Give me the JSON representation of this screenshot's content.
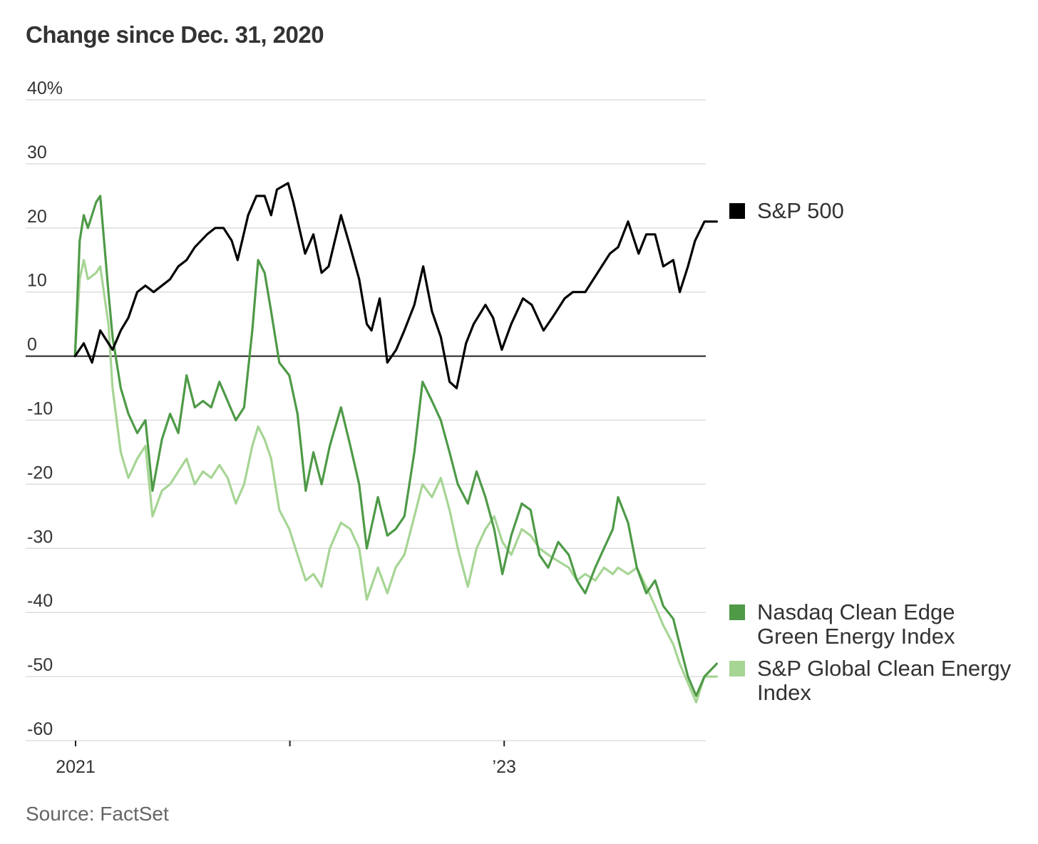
{
  "title": "Change since Dec. 31, 2020",
  "source": "Source: FactSet",
  "chart_data": {
    "type": "line",
    "ylabel": "",
    "xlabel": "",
    "ylim": [
      -60,
      40
    ],
    "y_ticks": [
      {
        "value": 40,
        "label": "40%"
      },
      {
        "value": 30,
        "label": "30"
      },
      {
        "value": 20,
        "label": "20"
      },
      {
        "value": 10,
        "label": "10"
      },
      {
        "value": 0,
        "label": "0"
      },
      {
        "value": -10,
        "label": "-10"
      },
      {
        "value": -20,
        "label": "-20"
      },
      {
        "value": -30,
        "label": "-30"
      },
      {
        "value": -40,
        "label": "-40"
      },
      {
        "value": -50,
        "label": "-50"
      },
      {
        "value": -60,
        "label": "-60"
      }
    ],
    "x_range": [
      "2021-01-01",
      "2023-12-31"
    ],
    "x_ticks": [
      {
        "date": "2021-01-01",
        "label": "2021"
      },
      {
        "date": "2022-01-01",
        "label": ""
      },
      {
        "date": "2023-01-01",
        "label": "’23"
      }
    ],
    "grid": true,
    "legend": "right",
    "series": [
      {
        "name": "S&P 500",
        "color": "#000000",
        "points": [
          [
            "2020-12-31",
            0
          ],
          [
            "2021-01-15",
            2
          ],
          [
            "2021-01-29",
            -1
          ],
          [
            "2021-02-12",
            4
          ],
          [
            "2021-03-05",
            1
          ],
          [
            "2021-03-19",
            4
          ],
          [
            "2021-04-01",
            6
          ],
          [
            "2021-04-16",
            10
          ],
          [
            "2021-04-30",
            11
          ],
          [
            "2021-05-14",
            10
          ],
          [
            "2021-05-28",
            11
          ],
          [
            "2021-06-11",
            12
          ],
          [
            "2021-06-25",
            14
          ],
          [
            "2021-07-09",
            15
          ],
          [
            "2021-07-23",
            17
          ],
          [
            "2021-08-13",
            19
          ],
          [
            "2021-08-27",
            20
          ],
          [
            "2021-09-10",
            20
          ],
          [
            "2021-09-24",
            18
          ],
          [
            "2021-10-04",
            15
          ],
          [
            "2021-10-22",
            22
          ],
          [
            "2021-11-05",
            25
          ],
          [
            "2021-11-19",
            25
          ],
          [
            "2021-11-30",
            22
          ],
          [
            "2021-12-10",
            26
          ],
          [
            "2021-12-29",
            27
          ],
          [
            "2022-01-07",
            24
          ],
          [
            "2022-01-27",
            16
          ],
          [
            "2022-02-10",
            19
          ],
          [
            "2022-02-24",
            13
          ],
          [
            "2022-03-08",
            14
          ],
          [
            "2022-03-29",
            22
          ],
          [
            "2022-04-14",
            17
          ],
          [
            "2022-04-29",
            12
          ],
          [
            "2022-05-12",
            5
          ],
          [
            "2022-05-20",
            4
          ],
          [
            "2022-06-03",
            9
          ],
          [
            "2022-06-16",
            -1
          ],
          [
            "2022-07-01",
            1
          ],
          [
            "2022-07-15",
            4
          ],
          [
            "2022-08-01",
            8
          ],
          [
            "2022-08-16",
            14
          ],
          [
            "2022-08-31",
            7
          ],
          [
            "2022-09-15",
            3
          ],
          [
            "2022-09-30",
            -4
          ],
          [
            "2022-10-12",
            -5
          ],
          [
            "2022-10-28",
            2
          ],
          [
            "2022-11-10",
            5
          ],
          [
            "2022-11-30",
            8
          ],
          [
            "2022-12-13",
            6
          ],
          [
            "2022-12-28",
            1
          ],
          [
            "2023-01-13",
            5
          ],
          [
            "2023-02-02",
            9
          ],
          [
            "2023-02-17",
            8
          ],
          [
            "2023-03-09",
            4
          ],
          [
            "2023-03-24",
            6
          ],
          [
            "2023-04-14",
            9
          ],
          [
            "2023-04-28",
            10
          ],
          [
            "2023-05-19",
            10
          ],
          [
            "2023-06-09",
            13
          ],
          [
            "2023-06-30",
            16
          ],
          [
            "2023-07-14",
            17
          ],
          [
            "2023-07-31",
            21
          ],
          [
            "2023-08-18",
            16
          ],
          [
            "2023-08-31",
            19
          ],
          [
            "2023-09-15",
            19
          ],
          [
            "2023-09-29",
            14
          ],
          [
            "2023-10-16",
            15
          ],
          [
            "2023-10-27",
            10
          ],
          [
            "2023-11-10",
            14
          ],
          [
            "2023-11-22",
            18
          ],
          [
            "2023-12-08",
            21
          ],
          [
            "2023-12-29",
            21
          ]
        ]
      },
      {
        "name": "Nasdaq Clean Edge Green Energy Index",
        "color": "#4e9a47",
        "points": [
          [
            "2020-12-31",
            0
          ],
          [
            "2021-01-08",
            18
          ],
          [
            "2021-01-15",
            22
          ],
          [
            "2021-01-22",
            20
          ],
          [
            "2021-02-05",
            24
          ],
          [
            "2021-02-12",
            25
          ],
          [
            "2021-02-26",
            10
          ],
          [
            "2021-03-05",
            3
          ],
          [
            "2021-03-19",
            -5
          ],
          [
            "2021-04-01",
            -9
          ],
          [
            "2021-04-16",
            -12
          ],
          [
            "2021-04-30",
            -10
          ],
          [
            "2021-05-12",
            -21
          ],
          [
            "2021-05-28",
            -13
          ],
          [
            "2021-06-11",
            -9
          ],
          [
            "2021-06-25",
            -12
          ],
          [
            "2021-07-09",
            -3
          ],
          [
            "2021-07-23",
            -8
          ],
          [
            "2021-08-06",
            -7
          ],
          [
            "2021-08-20",
            -8
          ],
          [
            "2021-09-03",
            -4
          ],
          [
            "2021-09-17",
            -7
          ],
          [
            "2021-10-01",
            -10
          ],
          [
            "2021-10-15",
            -8
          ],
          [
            "2021-10-29",
            4
          ],
          [
            "2021-11-08",
            15
          ],
          [
            "2021-11-19",
            13
          ],
          [
            "2021-11-30",
            7
          ],
          [
            "2021-12-14",
            -1
          ],
          [
            "2021-12-31",
            -3
          ],
          [
            "2022-01-14",
            -9
          ],
          [
            "2022-01-28",
            -21
          ],
          [
            "2022-02-10",
            -15
          ],
          [
            "2022-02-24",
            -20
          ],
          [
            "2022-03-10",
            -14
          ],
          [
            "2022-03-29",
            -8
          ],
          [
            "2022-04-14",
            -14
          ],
          [
            "2022-04-29",
            -20
          ],
          [
            "2022-05-12",
            -30
          ],
          [
            "2022-05-31",
            -22
          ],
          [
            "2022-06-16",
            -28
          ],
          [
            "2022-06-30",
            -27
          ],
          [
            "2022-07-15",
            -25
          ],
          [
            "2022-08-01",
            -15
          ],
          [
            "2022-08-15",
            -4
          ],
          [
            "2022-08-31",
            -7
          ],
          [
            "2022-09-15",
            -10
          ],
          [
            "2022-09-30",
            -15
          ],
          [
            "2022-10-14",
            -20
          ],
          [
            "2022-10-31",
            -23
          ],
          [
            "2022-11-15",
            -18
          ],
          [
            "2022-11-30",
            -22
          ],
          [
            "2022-12-15",
            -27
          ],
          [
            "2022-12-29",
            -34
          ],
          [
            "2023-01-13",
            -28
          ],
          [
            "2023-01-31",
            -23
          ],
          [
            "2023-02-15",
            -24
          ],
          [
            "2023-03-02",
            -31
          ],
          [
            "2023-03-17",
            -33
          ],
          [
            "2023-04-03",
            -29
          ],
          [
            "2023-04-21",
            -31
          ],
          [
            "2023-05-05",
            -35
          ],
          [
            "2023-05-19",
            -37
          ],
          [
            "2023-06-05",
            -33
          ],
          [
            "2023-06-20",
            -30
          ],
          [
            "2023-07-05",
            -27
          ],
          [
            "2023-07-14",
            -22
          ],
          [
            "2023-07-31",
            -26
          ],
          [
            "2023-08-15",
            -33
          ],
          [
            "2023-08-31",
            -37
          ],
          [
            "2023-09-15",
            -35
          ],
          [
            "2023-09-29",
            -39
          ],
          [
            "2023-10-16",
            -41
          ],
          [
            "2023-10-27",
            -45
          ],
          [
            "2023-11-10",
            -50
          ],
          [
            "2023-11-24",
            -53
          ],
          [
            "2023-12-08",
            -50
          ],
          [
            "2023-12-29",
            -48
          ]
        ]
      },
      {
        "name": "S&P Global Clean Energy Index",
        "color": "#a6d594",
        "points": [
          [
            "2020-12-31",
            0
          ],
          [
            "2021-01-08",
            12
          ],
          [
            "2021-01-15",
            15
          ],
          [
            "2021-01-22",
            12
          ],
          [
            "2021-02-05",
            13
          ],
          [
            "2021-02-12",
            14
          ],
          [
            "2021-02-26",
            5
          ],
          [
            "2021-03-05",
            -5
          ],
          [
            "2021-03-19",
            -15
          ],
          [
            "2021-04-01",
            -19
          ],
          [
            "2021-04-16",
            -16
          ],
          [
            "2021-04-30",
            -14
          ],
          [
            "2021-05-12",
            -25
          ],
          [
            "2021-05-28",
            -21
          ],
          [
            "2021-06-11",
            -20
          ],
          [
            "2021-06-25",
            -18
          ],
          [
            "2021-07-09",
            -16
          ],
          [
            "2021-07-23",
            -20
          ],
          [
            "2021-08-06",
            -18
          ],
          [
            "2021-08-20",
            -19
          ],
          [
            "2021-09-03",
            -17
          ],
          [
            "2021-09-17",
            -19
          ],
          [
            "2021-10-01",
            -23
          ],
          [
            "2021-10-15",
            -20
          ],
          [
            "2021-10-29",
            -14
          ],
          [
            "2021-11-08",
            -11
          ],
          [
            "2021-11-19",
            -13
          ],
          [
            "2021-11-30",
            -16
          ],
          [
            "2021-12-14",
            -24
          ],
          [
            "2021-12-31",
            -27
          ],
          [
            "2022-01-14",
            -31
          ],
          [
            "2022-01-28",
            -35
          ],
          [
            "2022-02-10",
            -34
          ],
          [
            "2022-02-24",
            -36
          ],
          [
            "2022-03-10",
            -30
          ],
          [
            "2022-03-29",
            -26
          ],
          [
            "2022-04-14",
            -27
          ],
          [
            "2022-04-29",
            -30
          ],
          [
            "2022-05-12",
            -38
          ],
          [
            "2022-05-31",
            -33
          ],
          [
            "2022-06-16",
            -37
          ],
          [
            "2022-06-30",
            -33
          ],
          [
            "2022-07-15",
            -31
          ],
          [
            "2022-08-01",
            -25
          ],
          [
            "2022-08-15",
            -20
          ],
          [
            "2022-08-31",
            -22
          ],
          [
            "2022-09-15",
            -19
          ],
          [
            "2022-09-30",
            -24
          ],
          [
            "2022-10-14",
            -30
          ],
          [
            "2022-10-31",
            -36
          ],
          [
            "2022-11-15",
            -30
          ],
          [
            "2022-11-30",
            -27
          ],
          [
            "2022-12-15",
            -25
          ],
          [
            "2022-12-29",
            -29
          ],
          [
            "2023-01-13",
            -31
          ],
          [
            "2023-01-31",
            -27
          ],
          [
            "2023-02-15",
            -28
          ],
          [
            "2023-03-02",
            -30
          ],
          [
            "2023-03-17",
            -31
          ],
          [
            "2023-04-03",
            -32
          ],
          [
            "2023-04-21",
            -33
          ],
          [
            "2023-05-05",
            -35
          ],
          [
            "2023-05-19",
            -34
          ],
          [
            "2023-06-05",
            -35
          ],
          [
            "2023-06-20",
            -33
          ],
          [
            "2023-07-05",
            -34
          ],
          [
            "2023-07-14",
            -33
          ],
          [
            "2023-07-31",
            -34
          ],
          [
            "2023-08-15",
            -33
          ],
          [
            "2023-08-31",
            -36
          ],
          [
            "2023-09-15",
            -39
          ],
          [
            "2023-09-29",
            -42
          ],
          [
            "2023-10-16",
            -45
          ],
          [
            "2023-10-27",
            -48
          ],
          [
            "2023-11-10",
            -51
          ],
          [
            "2023-11-24",
            -54
          ],
          [
            "2023-12-08",
            -50
          ],
          [
            "2023-12-29",
            -50
          ]
        ]
      }
    ],
    "legend_entries": [
      {
        "series": 0,
        "lines": [
          "S&P 500"
        ],
        "color": "#000000"
      },
      {
        "series": 1,
        "lines": [
          "Nasdaq Clean Edge",
          "Green Energy Index"
        ],
        "color": "#4e9a47"
      },
      {
        "series": 2,
        "lines": [
          "S&P Global Clean Energy",
          "Index"
        ],
        "color": "#a6d594"
      }
    ]
  }
}
